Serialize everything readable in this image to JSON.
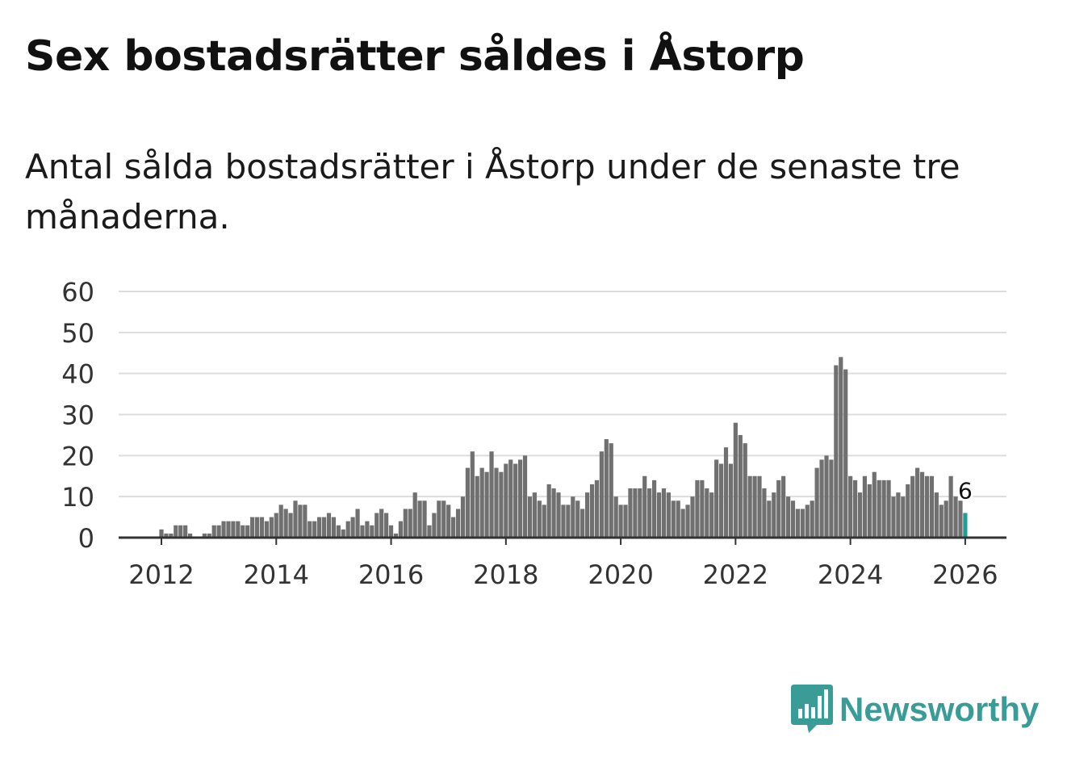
{
  "title": "Sex bostadsrätter såldes i Åstorp",
  "subtitle": "Antal sålda bostadsrätter i Åstorp under de senaste tre månaderna.",
  "brand": {
    "name": "Newsworthy",
    "icon": "newsworthy-logo-icon",
    "color": "#3a9c96"
  },
  "colors": {
    "bar": "#707070",
    "highlight": "#1f9e94",
    "grid": "#dddddd",
    "axis": "#333333"
  },
  "chart_data": {
    "type": "bar",
    "title": "Sex bostadsrätter såldes i Åstorp",
    "xlabel": "",
    "ylabel": "",
    "ylim": [
      0,
      60
    ],
    "yticks": [
      0,
      10,
      20,
      30,
      40,
      50,
      60
    ],
    "xticks": [
      "2012",
      "2014",
      "2016",
      "2018",
      "2020",
      "2022",
      "2024",
      "2026"
    ],
    "start": "2011-01",
    "frequency": "monthly",
    "grid": true,
    "values": [
      0,
      0,
      0,
      0,
      0,
      0,
      0,
      0,
      0,
      0,
      0,
      0,
      2,
      1,
      1,
      3,
      3,
      3,
      1,
      0,
      0,
      1,
      1,
      3,
      3,
      4,
      4,
      4,
      4,
      3,
      3,
      5,
      5,
      5,
      4,
      5,
      6,
      8,
      7,
      6,
      9,
      8,
      8,
      4,
      4,
      5,
      5,
      6,
      5,
      3,
      2,
      4,
      5,
      7,
      3,
      4,
      3,
      6,
      7,
      6,
      3,
      1,
      4,
      7,
      7,
      11,
      9,
      9,
      3,
      6,
      9,
      9,
      8,
      5,
      7,
      10,
      17,
      21,
      15,
      17,
      16,
      21,
      17,
      16,
      18,
      19,
      18,
      19,
      20,
      10,
      11,
      9,
      8,
      13,
      12,
      11,
      8,
      8,
      10,
      9,
      7,
      11,
      13,
      14,
      21,
      24,
      23,
      10,
      8,
      8,
      12,
      12,
      12,
      15,
      12,
      14,
      11,
      12,
      11,
      9,
      9,
      7,
      8,
      10,
      14,
      14,
      12,
      11,
      19,
      18,
      22,
      18,
      28,
      25,
      23,
      15,
      15,
      15,
      12,
      9,
      11,
      14,
      15,
      10,
      9,
      7,
      7,
      8,
      9,
      17,
      19,
      20,
      19,
      42,
      44,
      41,
      15,
      14,
      11,
      15,
      13,
      16,
      14,
      14,
      14,
      10,
      11,
      10,
      13,
      15,
      17,
      16,
      15,
      15,
      11,
      8,
      9,
      15,
      10,
      9,
      6
    ],
    "last_value": 6,
    "last_value_label": "6"
  }
}
